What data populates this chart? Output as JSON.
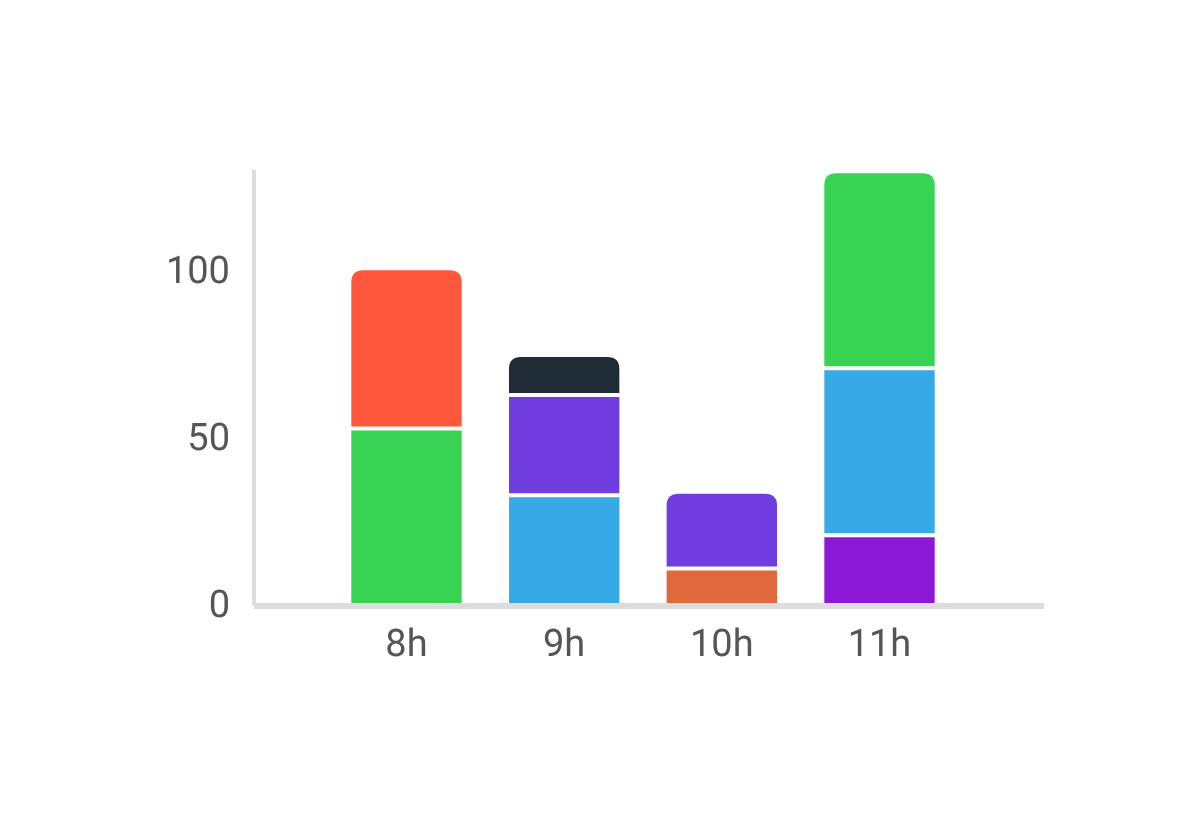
{
  "chart_data": {
    "type": "bar",
    "stacked": true,
    "categories": [
      "8h",
      "9h",
      "10h",
      "11h"
    ],
    "series": [
      {
        "colors": [
          "#38d353",
          "#36a9e6",
          "#e0683a",
          "#8a1ad8"
        ],
        "values": [
          52,
          32,
          10,
          20
        ]
      },
      {
        "colors": [
          "#ff573b",
          "#6f3de0",
          "#6f3de0",
          "#36a9e6"
        ],
        "values": [
          48,
          30,
          23,
          50
        ]
      },
      {
        "colors": [
          null,
          "#1f2b35",
          null,
          "#38d353"
        ],
        "values": [
          null,
          12,
          null,
          59
        ]
      }
    ],
    "ylim": [
      0,
      130
    ],
    "yticks": [
      0,
      50,
      100
    ],
    "grid": false
  }
}
